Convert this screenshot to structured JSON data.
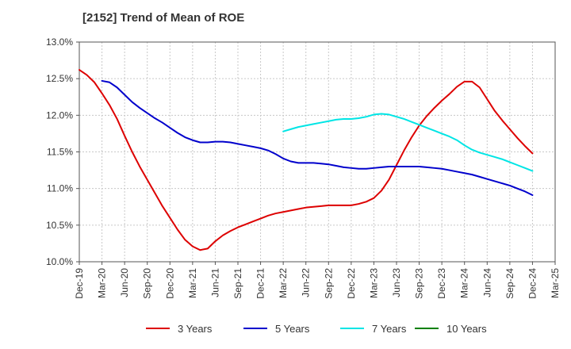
{
  "chart_data": {
    "type": "line",
    "title": "[2152]  Trend of Mean of ROE",
    "xlabel": "",
    "ylabel": "",
    "x_ticks": [
      "Dec-19",
      "Mar-20",
      "Jun-20",
      "Sep-20",
      "Dec-20",
      "Mar-21",
      "Jun-21",
      "Sep-21",
      "Dec-21",
      "Mar-22",
      "Jun-22",
      "Sep-22",
      "Dec-22",
      "Mar-23",
      "Jun-23",
      "Sep-23",
      "Dec-23",
      "Mar-24",
      "Jun-24",
      "Sep-24",
      "Dec-24",
      "Mar-25"
    ],
    "y_ticks": [
      "10.0%",
      "10.5%",
      "11.0%",
      "11.5%",
      "12.0%",
      "12.5%",
      "13.0%"
    ],
    "ylim": [
      10.0,
      13.0
    ],
    "grid": true,
    "legend_position": "bottom",
    "series": [
      {
        "name": "3 Years",
        "color": "#dd0000",
        "points": [
          [
            "Dec-19",
            12.62
          ],
          [
            "Jan-20",
            12.55
          ],
          [
            "Feb-20",
            12.45
          ],
          [
            "Mar-20",
            12.3
          ],
          [
            "Apr-20",
            12.14
          ],
          [
            "May-20",
            11.95
          ],
          [
            "Jun-20",
            11.72
          ],
          [
            "Jul-20",
            11.5
          ],
          [
            "Aug-20",
            11.3
          ],
          [
            "Sep-20",
            11.12
          ],
          [
            "Oct-20",
            10.94
          ],
          [
            "Nov-20",
            10.76
          ],
          [
            "Dec-20",
            10.6
          ],
          [
            "Jan-21",
            10.44
          ],
          [
            "Feb-21",
            10.3
          ],
          [
            "Mar-21",
            10.21
          ],
          [
            "Apr-21",
            10.16
          ],
          [
            "May-21",
            10.18
          ],
          [
            "Jun-21",
            10.28
          ],
          [
            "Jul-21",
            10.36
          ],
          [
            "Aug-21",
            10.42
          ],
          [
            "Sep-21",
            10.47
          ],
          [
            "Oct-21",
            10.51
          ],
          [
            "Nov-21",
            10.55
          ],
          [
            "Dec-21",
            10.59
          ],
          [
            "Jan-22",
            10.63
          ],
          [
            "Feb-22",
            10.66
          ],
          [
            "Mar-22",
            10.68
          ],
          [
            "Apr-22",
            10.7
          ],
          [
            "May-22",
            10.72
          ],
          [
            "Jun-22",
            10.74
          ],
          [
            "Jul-22",
            10.75
          ],
          [
            "Aug-22",
            10.76
          ],
          [
            "Sep-22",
            10.77
          ],
          [
            "Oct-22",
            10.77
          ],
          [
            "Nov-22",
            10.77
          ],
          [
            "Dec-22",
            10.77
          ],
          [
            "Jan-23",
            10.79
          ],
          [
            "Feb-23",
            10.82
          ],
          [
            "Mar-23",
            10.87
          ],
          [
            "Apr-23",
            10.97
          ],
          [
            "May-23",
            11.12
          ],
          [
            "Jun-23",
            11.32
          ],
          [
            "Jul-23",
            11.52
          ],
          [
            "Aug-23",
            11.7
          ],
          [
            "Sep-23",
            11.86
          ],
          [
            "Oct-23",
            11.99
          ],
          [
            "Nov-23",
            12.1
          ],
          [
            "Dec-23",
            12.2
          ],
          [
            "Jan-24",
            12.29
          ],
          [
            "Feb-24",
            12.39
          ],
          [
            "Mar-24",
            12.46
          ],
          [
            "Apr-24",
            12.46
          ],
          [
            "May-24",
            12.38
          ],
          [
            "Jun-24",
            12.22
          ],
          [
            "Jul-24",
            12.06
          ],
          [
            "Aug-24",
            11.93
          ],
          [
            "Sep-24",
            11.81
          ],
          [
            "Oct-24",
            11.69
          ],
          [
            "Nov-24",
            11.58
          ],
          [
            "Dec-24",
            11.48
          ]
        ]
      },
      {
        "name": "5 Years",
        "color": "#0000cc",
        "points": [
          [
            "Mar-20",
            12.47
          ],
          [
            "Apr-20",
            12.45
          ],
          [
            "May-20",
            12.38
          ],
          [
            "Jun-20",
            12.28
          ],
          [
            "Jul-20",
            12.18
          ],
          [
            "Aug-20",
            12.1
          ],
          [
            "Sep-20",
            12.03
          ],
          [
            "Oct-20",
            11.96
          ],
          [
            "Nov-20",
            11.9
          ],
          [
            "Dec-20",
            11.83
          ],
          [
            "Jan-21",
            11.76
          ],
          [
            "Feb-21",
            11.7
          ],
          [
            "Mar-21",
            11.66
          ],
          [
            "Apr-21",
            11.63
          ],
          [
            "May-21",
            11.63
          ],
          [
            "Jun-21",
            11.64
          ],
          [
            "Jul-21",
            11.64
          ],
          [
            "Aug-21",
            11.63
          ],
          [
            "Sep-21",
            11.61
          ],
          [
            "Oct-21",
            11.59
          ],
          [
            "Nov-21",
            11.57
          ],
          [
            "Dec-21",
            11.55
          ],
          [
            "Jan-22",
            11.52
          ],
          [
            "Feb-22",
            11.47
          ],
          [
            "Mar-22",
            11.41
          ],
          [
            "Apr-22",
            11.37
          ],
          [
            "May-22",
            11.35
          ],
          [
            "Jun-22",
            11.35
          ],
          [
            "Jul-22",
            11.35
          ],
          [
            "Aug-22",
            11.34
          ],
          [
            "Sep-22",
            11.33
          ],
          [
            "Oct-22",
            11.31
          ],
          [
            "Nov-22",
            11.29
          ],
          [
            "Dec-22",
            11.28
          ],
          [
            "Jan-23",
            11.27
          ],
          [
            "Feb-23",
            11.27
          ],
          [
            "Mar-23",
            11.28
          ],
          [
            "Apr-23",
            11.29
          ],
          [
            "May-23",
            11.3
          ],
          [
            "Jun-23",
            11.3
          ],
          [
            "Jul-23",
            11.3
          ],
          [
            "Aug-23",
            11.3
          ],
          [
            "Sep-23",
            11.3
          ],
          [
            "Oct-23",
            11.29
          ],
          [
            "Nov-23",
            11.28
          ],
          [
            "Dec-23",
            11.27
          ],
          [
            "Jan-24",
            11.25
          ],
          [
            "Feb-24",
            11.23
          ],
          [
            "Mar-24",
            11.21
          ],
          [
            "Apr-24",
            11.19
          ],
          [
            "May-24",
            11.16
          ],
          [
            "Jun-24",
            11.13
          ],
          [
            "Jul-24",
            11.1
          ],
          [
            "Aug-24",
            11.07
          ],
          [
            "Sep-24",
            11.04
          ],
          [
            "Oct-24",
            11.0
          ],
          [
            "Nov-24",
            10.96
          ],
          [
            "Dec-24",
            10.91
          ]
        ]
      },
      {
        "name": "7 Years",
        "color": "#00e5e5",
        "points": [
          [
            "Mar-22",
            11.78
          ],
          [
            "Apr-22",
            11.81
          ],
          [
            "May-22",
            11.84
          ],
          [
            "Jun-22",
            11.86
          ],
          [
            "Jul-22",
            11.88
          ],
          [
            "Aug-22",
            11.9
          ],
          [
            "Sep-22",
            11.92
          ],
          [
            "Oct-22",
            11.94
          ],
          [
            "Nov-22",
            11.95
          ],
          [
            "Dec-22",
            11.95
          ],
          [
            "Jan-23",
            11.96
          ],
          [
            "Feb-23",
            11.98
          ],
          [
            "Mar-23",
            12.01
          ],
          [
            "Apr-23",
            12.02
          ],
          [
            "May-23",
            12.01
          ],
          [
            "Jun-23",
            11.98
          ],
          [
            "Jul-23",
            11.95
          ],
          [
            "Aug-23",
            11.91
          ],
          [
            "Sep-23",
            11.87
          ],
          [
            "Oct-23",
            11.83
          ],
          [
            "Nov-23",
            11.79
          ],
          [
            "Dec-23",
            11.75
          ],
          [
            "Jan-24",
            11.71
          ],
          [
            "Feb-24",
            11.66
          ],
          [
            "Mar-24",
            11.59
          ],
          [
            "Apr-24",
            11.53
          ],
          [
            "May-24",
            11.49
          ],
          [
            "Jun-24",
            11.46
          ],
          [
            "Jul-24",
            11.43
          ],
          [
            "Aug-24",
            11.4
          ],
          [
            "Sep-24",
            11.36
          ],
          [
            "Oct-24",
            11.32
          ],
          [
            "Nov-24",
            11.28
          ],
          [
            "Dec-24",
            11.24
          ]
        ]
      },
      {
        "name": "10 Years",
        "color": "#008000",
        "points": []
      }
    ]
  }
}
